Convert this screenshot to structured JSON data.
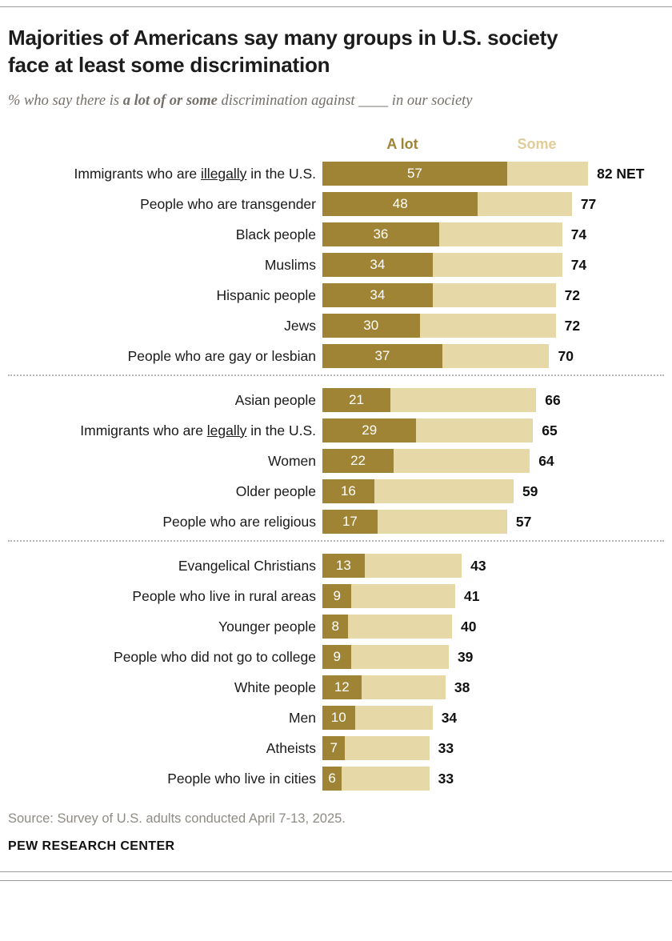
{
  "header": {
    "title": "Majorities of Americans say many groups in U.S. society face at least some discrimination",
    "subtitle_pre": "% who say there is ",
    "subtitle_bold": "a lot of or some",
    "subtitle_post": " discrimination against ____ in our society"
  },
  "legend": {
    "a_lot": "A lot",
    "some": "Some"
  },
  "colors": {
    "a_lot": "#a08436",
    "some": "#e7d8a7",
    "a_lot_text": "#a08436",
    "some_text": "#e0cd97",
    "net_text": "#111111",
    "bar_value_text": "#ffffff"
  },
  "chart_data": {
    "type": "bar",
    "orientation": "horizontal",
    "stacked": true,
    "unit": "%",
    "x_max": 82,
    "title": "Majorities of Americans say many groups in U.S. society face at least some discrimination",
    "series_names": [
      "A lot",
      "Some"
    ],
    "note": "Dark segment = % saying 'a lot'; full bar length = NET (a lot + some)",
    "groups": [
      {
        "rows": [
          {
            "label_pre": "Immigrants who are ",
            "label_u": "illegally",
            "label_post": " in the U.S.",
            "a_lot": 57,
            "net": 82,
            "net_label": "82 NET"
          },
          {
            "label_pre": "People who are transgender",
            "label_u": "",
            "label_post": "",
            "a_lot": 48,
            "net": 77,
            "net_label": "77"
          },
          {
            "label_pre": "Black people",
            "label_u": "",
            "label_post": "",
            "a_lot": 36,
            "net": 74,
            "net_label": "74"
          },
          {
            "label_pre": "Muslims",
            "label_u": "",
            "label_post": "",
            "a_lot": 34,
            "net": 74,
            "net_label": "74"
          },
          {
            "label_pre": "Hispanic people",
            "label_u": "",
            "label_post": "",
            "a_lot": 34,
            "net": 72,
            "net_label": "72"
          },
          {
            "label_pre": "Jews",
            "label_u": "",
            "label_post": "",
            "a_lot": 30,
            "net": 72,
            "net_label": "72"
          },
          {
            "label_pre": "People who are gay or lesbian",
            "label_u": "",
            "label_post": "",
            "a_lot": 37,
            "net": 70,
            "net_label": "70"
          }
        ]
      },
      {
        "rows": [
          {
            "label_pre": "Asian people",
            "label_u": "",
            "label_post": "",
            "a_lot": 21,
            "net": 66,
            "net_label": "66"
          },
          {
            "label_pre": "Immigrants who are ",
            "label_u": "legally",
            "label_post": " in the U.S.",
            "a_lot": 29,
            "net": 65,
            "net_label": "65"
          },
          {
            "label_pre": "Women",
            "label_u": "",
            "label_post": "",
            "a_lot": 22,
            "net": 64,
            "net_label": "64"
          },
          {
            "label_pre": "Older people",
            "label_u": "",
            "label_post": "",
            "a_lot": 16,
            "net": 59,
            "net_label": "59"
          },
          {
            "label_pre": "People who are religious",
            "label_u": "",
            "label_post": "",
            "a_lot": 17,
            "net": 57,
            "net_label": "57"
          }
        ]
      },
      {
        "rows": [
          {
            "label_pre": "Evangelical Christians",
            "label_u": "",
            "label_post": "",
            "a_lot": 13,
            "net": 43,
            "net_label": "43"
          },
          {
            "label_pre": "People who live in rural areas",
            "label_u": "",
            "label_post": "",
            "a_lot": 9,
            "net": 41,
            "net_label": "41"
          },
          {
            "label_pre": "Younger people",
            "label_u": "",
            "label_post": "",
            "a_lot": 8,
            "net": 40,
            "net_label": "40"
          },
          {
            "label_pre": "People who did not go to college",
            "label_u": "",
            "label_post": "",
            "a_lot": 9,
            "net": 39,
            "net_label": "39"
          },
          {
            "label_pre": "White people",
            "label_u": "",
            "label_post": "",
            "a_lot": 12,
            "net": 38,
            "net_label": "38"
          },
          {
            "label_pre": "Men",
            "label_u": "",
            "label_post": "",
            "a_lot": 10,
            "net": 34,
            "net_label": "34"
          },
          {
            "label_pre": "Atheists",
            "label_u": "",
            "label_post": "",
            "a_lot": 7,
            "net": 33,
            "net_label": "33"
          },
          {
            "label_pre": "People who live in cities",
            "label_u": "",
            "label_post": "",
            "a_lot": 6,
            "net": 33,
            "net_label": "33"
          }
        ]
      }
    ]
  },
  "footer": {
    "source": "Source: Survey of U.S. adults conducted April 7-13, 2025.",
    "brand": "PEW RESEARCH CENTER"
  }
}
